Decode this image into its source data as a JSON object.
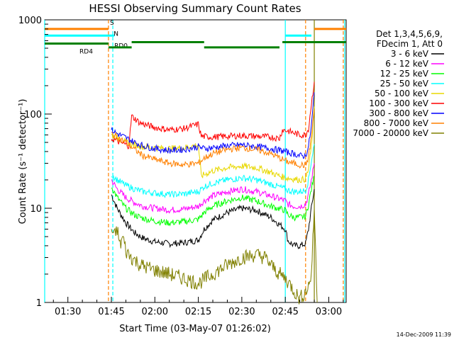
{
  "chart_data": {
    "type": "line",
    "title": "HESSI Observing Summary Count Rates",
    "xlabel": "Start Time (03-May-07 01:26:02)",
    "ylabel": "Count Rate (s⁻¹ detector⁻¹)",
    "yscale": "log",
    "ylim": [
      1,
      1000
    ],
    "xlim_minutes": [
      82,
      186
    ],
    "x_ticks": [
      "01:30",
      "01:45",
      "02:00",
      "02:15",
      "02:30",
      "02:45",
      "03:00"
    ],
    "x_tick_minutes": [
      90,
      105,
      120,
      135,
      150,
      165,
      180
    ],
    "y_ticks": [
      "1",
      "10",
      "100",
      "1000"
    ],
    "y_tick_values": [
      1,
      10,
      100,
      1000
    ],
    "legend_header": [
      "Det 1,3,4,5,6,9,",
      "FDecim 1, Att 0"
    ],
    "series": [
      {
        "name": "3 - 6 keV",
        "color": "#000000",
        "x": [
          105,
          107,
          110,
          113,
          116,
          120,
          125,
          130,
          135,
          137,
          140,
          145,
          150,
          155,
          160,
          165,
          166,
          168,
          170,
          172,
          173,
          174,
          175
        ],
        "y": [
          14,
          10,
          7,
          5.5,
          4.8,
          4.4,
          4.2,
          4.3,
          4.6,
          6,
          7.5,
          9,
          10,
          9.5,
          8,
          6,
          4.5,
          4,
          4,
          4.2,
          6,
          10,
          16
        ]
      },
      {
        "name": "6 - 12 keV",
        "color": "#ff00ff",
        "x": [
          105,
          107,
          110,
          113,
          116,
          120,
          125,
          130,
          135,
          137,
          140,
          145,
          150,
          155,
          160,
          165,
          166,
          168,
          170,
          172,
          173,
          174,
          175
        ],
        "y": [
          20,
          16,
          13,
          11.5,
          10.5,
          10,
          9.6,
          9.8,
          10.5,
          12,
          13.5,
          15,
          16,
          15,
          13.5,
          12,
          11,
          10.5,
          10.5,
          11,
          14,
          20,
          30
        ]
      },
      {
        "name": "12 - 25 keV",
        "color": "#00ff00",
        "x": [
          105,
          107,
          110,
          113,
          116,
          120,
          125,
          130,
          135,
          137,
          140,
          145,
          150,
          155,
          160,
          165,
          166,
          168,
          170,
          172,
          173,
          174,
          175
        ],
        "y": [
          17,
          13,
          10,
          8.5,
          7.8,
          7.3,
          7,
          7.2,
          7.6,
          9,
          10.5,
          12,
          13,
          12,
          10.5,
          9.5,
          8.5,
          8,
          8,
          8.2,
          11,
          16,
          22
        ]
      },
      {
        "name": "25 - 50 keV",
        "color": "#00ffff",
        "x": [
          105,
          107,
          110,
          113,
          116,
          120,
          125,
          130,
          135,
          137,
          140,
          145,
          150,
          155,
          160,
          165,
          166,
          168,
          170,
          172,
          173,
          174,
          175
        ],
        "y": [
          23,
          20,
          17.5,
          16,
          15,
          14.5,
          14,
          14.2,
          15,
          17,
          18.5,
          20,
          21,
          20,
          18,
          16,
          15.5,
          15,
          15,
          15.5,
          20,
          32,
          48
        ]
      },
      {
        "name": "50 - 100 keV",
        "color": "#e8d800",
        "x": [
          105,
          107,
          108,
          110,
          113,
          116,
          120,
          125,
          130,
          135,
          136,
          140,
          145,
          150,
          155,
          160,
          163,
          165,
          168,
          170,
          172,
          173,
          174,
          175
        ],
        "y": [
          60,
          56,
          54,
          50,
          47,
          45,
          44,
          43,
          44,
          47,
          22,
          25,
          27,
          28,
          27,
          24,
          22,
          21,
          20.5,
          20,
          20.5,
          26,
          45,
          120
        ]
      },
      {
        "name": "100 - 300 keV",
        "color": "#ff0000",
        "x": [
          105,
          108,
          111,
          112,
          115,
          120,
          125,
          130,
          135,
          136,
          140,
          145,
          150,
          155,
          160,
          163,
          164,
          166,
          168,
          170,
          172,
          173,
          174,
          175
        ],
        "y": [
          55,
          50,
          46,
          95,
          80,
          72,
          68,
          70,
          78,
          58,
          57,
          58,
          59,
          58,
          57,
          55,
          68,
          66,
          63,
          60,
          60,
          70,
          130,
          220
        ]
      },
      {
        "name": "300 - 800 keV",
        "color": "#0000ff",
        "x": [
          105,
          107,
          110,
          113,
          116,
          120,
          125,
          130,
          135,
          137,
          140,
          145,
          150,
          155,
          160,
          165,
          166,
          168,
          170,
          172,
          173,
          174,
          175
        ],
        "y": [
          68,
          62,
          56,
          50,
          46,
          43,
          41,
          42,
          45,
          43,
          44,
          46,
          47,
          45,
          43,
          40,
          39,
          38,
          36,
          36,
          45,
          75,
          170
        ]
      },
      {
        "name": "800 - 7000 keV",
        "color": "#ff8000",
        "x": [
          105,
          107,
          110,
          113,
          116,
          120,
          125,
          130,
          135,
          137,
          140,
          145,
          150,
          155,
          160,
          165,
          166,
          168,
          170,
          172,
          173,
          174,
          175
        ],
        "y": [
          62,
          57,
          50,
          42,
          36,
          33,
          30,
          29,
          30,
          34,
          38,
          42,
          44,
          42,
          38,
          32,
          31,
          30,
          29,
          28.5,
          35,
          58,
          110
        ]
      },
      {
        "name": "7000 - 20000 keV",
        "color": "#808000",
        "x": [
          105,
          106,
          107,
          108,
          109,
          110,
          112,
          115,
          120,
          125,
          130,
          135,
          140,
          145,
          150,
          155,
          158,
          160,
          163,
          165,
          167,
          169,
          170,
          172,
          173,
          174,
          175,
          176
        ],
        "y": [
          6,
          5,
          6,
          4,
          5,
          3.5,
          3,
          2.5,
          2.2,
          2,
          1.8,
          1.6,
          2,
          2.5,
          3,
          3.2,
          3,
          2.5,
          2,
          1.8,
          1.5,
          1.2,
          1.1,
          1.3,
          1.5,
          2,
          10,
          1
        ]
      }
    ],
    "state_bars": [
      {
        "label": "S",
        "color": "#ff8000",
        "value": 800,
        "segments": [
          [
            82,
            104
          ],
          [
            175,
            186
          ]
        ]
      },
      {
        "label": "N",
        "color": "#00ffff",
        "value": 680,
        "segments": [
          [
            82,
            106
          ],
          [
            165,
            174
          ]
        ]
      },
      {
        "label": "RD0",
        "color": "#008000",
        "value": 580,
        "segments": [
          [
            112,
            137
          ],
          [
            164,
            186
          ]
        ]
      },
      {
        "label": "RD4",
        "color": "#008000",
        "value": 560,
        "segments": [
          [
            82,
            104
          ]
        ]
      },
      {
        "label": "",
        "color": "#008000",
        "value": 510,
        "segments": [
          [
            104,
            112
          ],
          [
            137,
            163
          ]
        ]
      }
    ],
    "vertical_markers": [
      {
        "minute": 82,
        "color": "#00ffff",
        "style": "solid"
      },
      {
        "minute": 104,
        "color": "#ff8000",
        "style": "dashed"
      },
      {
        "minute": 105.5,
        "color": "#00ffff",
        "style": "dashed"
      },
      {
        "minute": 165,
        "color": "#00ffff",
        "style": "solid"
      },
      {
        "minute": 172,
        "color": "#ff8000",
        "style": "dashed"
      },
      {
        "minute": 175,
        "color": "#808000",
        "style": "solid"
      },
      {
        "minute": 185,
        "color": "#ff8000",
        "style": "dashed"
      },
      {
        "minute": 185.5,
        "color": "#00ffff",
        "style": "solid"
      }
    ],
    "footer_date": "14-Dec-2009 11:39"
  }
}
